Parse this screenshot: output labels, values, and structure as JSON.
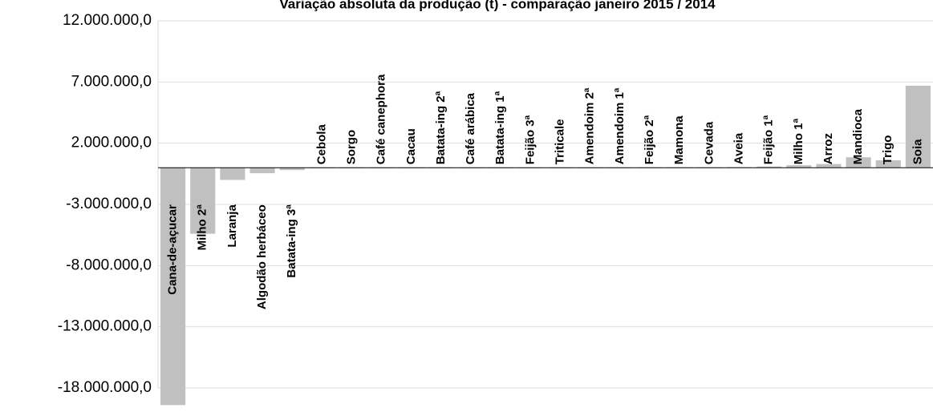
{
  "chart_data": {
    "type": "bar",
    "title": "Variação absoluta da produção (t) - comparação janeiro 2015 / 2014",
    "categories": [
      "Cana-de-açucar",
      "Milho 2ª",
      "Laranja",
      "Algodão herbáceo",
      "Batata-ing 3ª",
      "Cebola",
      "Sorgo",
      "Café canephora",
      "Cacau",
      "Batata-ing 2ª",
      "Café arábica",
      "Batata-ing 1ª",
      "Feijão 3ª",
      "Triticale",
      "Amendoim 2ª",
      "Amendoim 1ª",
      "Feijão 2ª",
      "Mamona",
      "Cevada",
      "Aveia",
      "Feijão 1ª",
      "Milho 1ª",
      "Arroz",
      "Mandioca",
      "Trigo",
      "Soia"
    ],
    "values": [
      -19400000,
      -5400000,
      -1000000,
      -450000,
      -200000,
      20000,
      20000,
      20000,
      20000,
      20000,
      20000,
      20000,
      20000,
      20000,
      20000,
      20000,
      30000,
      30000,
      30000,
      50000,
      100000,
      200000,
      300000,
      850000,
      600000,
      6700000
    ],
    "color": "#c0c0c0",
    "ylim": [
      -18000000,
      12000000
    ],
    "yticks": [
      {
        "value": 12000000,
        "label": "12.000.000,0"
      },
      {
        "value": 7000000,
        "label": "7.000.000,0"
      },
      {
        "value": 2000000,
        "label": "2.000.000,0"
      },
      {
        "value": -3000000,
        "label": "-3.000.000,0"
      },
      {
        "value": -8000000,
        "label": "-8.000.000,0"
      },
      {
        "value": -13000000,
        "label": "-13.000.000,0"
      },
      {
        "value": -18000000,
        "label": "-18.000.000,0"
      }
    ],
    "grid": true
  }
}
